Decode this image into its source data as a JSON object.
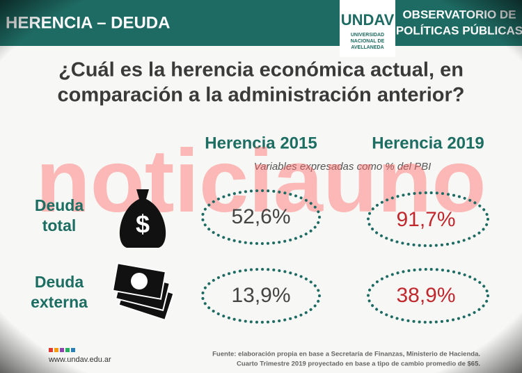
{
  "header": {
    "title": "HERENCIA – DEUDA",
    "logo": "UNDAV",
    "logo_sub": [
      "UNIVERSIDAD",
      "NACIONAL DE",
      "AVELLANEDA"
    ],
    "org": [
      "OBSERVATORIO DE",
      "POLÍTICAS PÚBLICAS"
    ]
  },
  "question": [
    "¿Cuál es la herencia económica actual, en",
    "comparación a la administración anterior?"
  ],
  "table": {
    "columns": [
      "Herencia 2015",
      "Herencia 2019"
    ],
    "note": "Variables expresadas como % del PBI",
    "rows": [
      {
        "label": [
          "Deuda",
          "total"
        ],
        "values": [
          "52,6%",
          "91,7%"
        ]
      },
      {
        "label": [
          "Deuda",
          "externa"
        ],
        "values": [
          "13,9%",
          "38,9%"
        ]
      }
    ]
  },
  "watermark": "noticiauno",
  "footer": {
    "url": "www.undav.edu.ar",
    "source": [
      "Fuente: elaboración propia en base a Secretaría de Finanzas, Ministerio de Hacienda.",
      "Cuarto Trimestre  2019 proyectado en base a tipo de cambio promedio de $65."
    ]
  }
}
